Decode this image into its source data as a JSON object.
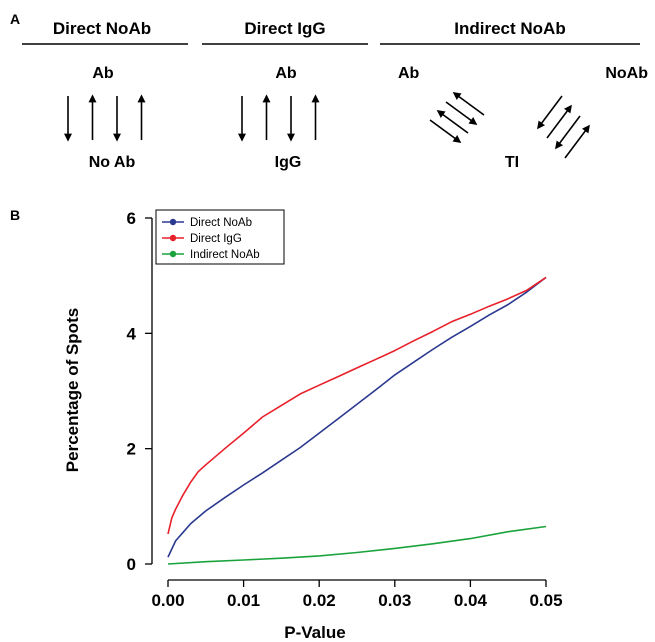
{
  "panel_a": {
    "label": "A",
    "groups": [
      {
        "title": "Direct NoAb",
        "top_label": "Ab",
        "bottom_label": "No Ab",
        "arrows": [
          "down",
          "up",
          "down",
          "up"
        ]
      },
      {
        "title": "Direct IgG",
        "top_label": "Ab",
        "bottom_label": "IgG",
        "arrows": [
          "down",
          "up",
          "down",
          "up"
        ]
      },
      {
        "title": "Indirect NoAb",
        "left_label": "Ab",
        "right_label": "NoAb",
        "bottom_label": "TI",
        "arrows_left": [
          "down-right",
          "up-left",
          "down-right",
          "up-left"
        ],
        "arrows_right": [
          "down-left",
          "up-right",
          "down-left",
          "up-right"
        ]
      }
    ]
  },
  "panel_b": {
    "label": "B"
  },
  "chart_data": {
    "type": "line",
    "xlabel": "P-Value",
    "ylabel": "Percentage of Spots",
    "xlim": [
      0,
      0.05
    ],
    "ylim": [
      0,
      6
    ],
    "xticks": [
      "0.00",
      "0.01",
      "0.02",
      "0.03",
      "0.04",
      "0.05"
    ],
    "yticks": [
      "0",
      "2",
      "4",
      "6"
    ],
    "grid": false,
    "legend_position": "top-left",
    "series": [
      {
        "name": "Direct NoAb",
        "color": "#2b3990",
        "x": [
          0.0,
          0.001,
          0.002,
          0.003,
          0.005,
          0.0075,
          0.01,
          0.0125,
          0.015,
          0.0175,
          0.02,
          0.0225,
          0.025,
          0.0275,
          0.03,
          0.0325,
          0.035,
          0.0375,
          0.04,
          0.0425,
          0.045,
          0.0475,
          0.05
        ],
        "y": [
          0.12,
          0.4,
          0.55,
          0.7,
          0.92,
          1.15,
          1.37,
          1.58,
          1.8,
          2.02,
          2.27,
          2.52,
          2.77,
          3.02,
          3.28,
          3.5,
          3.72,
          3.93,
          4.12,
          4.32,
          4.5,
          4.72,
          4.97
        ]
      },
      {
        "name": "Direct IgG",
        "color": "#e8202a",
        "x": [
          0.0,
          0.0005,
          0.001,
          0.002,
          0.003,
          0.004,
          0.005,
          0.0075,
          0.01,
          0.0125,
          0.015,
          0.0175,
          0.02,
          0.0225,
          0.025,
          0.0275,
          0.03,
          0.0325,
          0.035,
          0.0375,
          0.04,
          0.0425,
          0.045,
          0.0475,
          0.05
        ],
        "y": [
          0.52,
          0.8,
          0.95,
          1.2,
          1.42,
          1.6,
          1.72,
          2.0,
          2.27,
          2.55,
          2.75,
          2.95,
          3.1,
          3.25,
          3.4,
          3.55,
          3.7,
          3.87,
          4.03,
          4.2,
          4.33,
          4.47,
          4.6,
          4.75,
          4.97
        ]
      },
      {
        "name": "Indirect NoAb",
        "color": "#1aa33c",
        "x": [
          0.0,
          0.005,
          0.01,
          0.015,
          0.02,
          0.025,
          0.03,
          0.035,
          0.04,
          0.045,
          0.05
        ],
        "y": [
          0.0,
          0.04,
          0.07,
          0.1,
          0.14,
          0.2,
          0.27,
          0.35,
          0.44,
          0.56,
          0.65
        ]
      }
    ]
  }
}
